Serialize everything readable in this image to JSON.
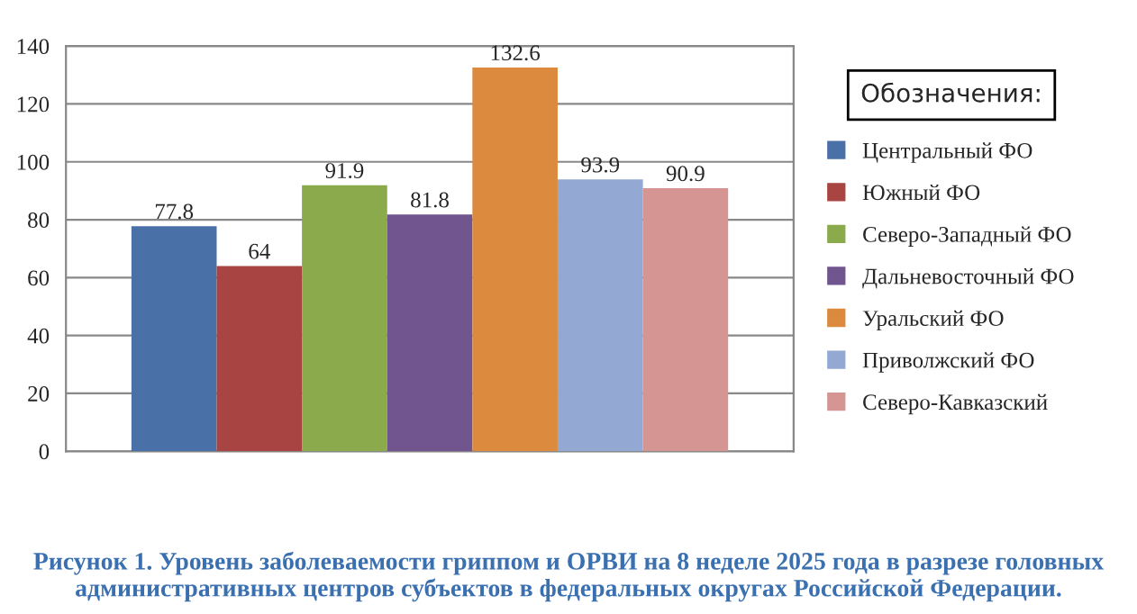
{
  "chart_data": {
    "type": "bar",
    "categories": [
      null
    ],
    "series": [
      {
        "name": "Центральный ФО",
        "color": "#4a70a8",
        "values": [
          77.8
        ]
      },
      {
        "name": "Южный ФО",
        "color": "#a84441",
        "values": [
          64
        ]
      },
      {
        "name": "Северо-Западный ФО",
        "color": "#8aaa4c",
        "values": [
          91.9
        ]
      },
      {
        "name": "Дальневосточный ФО",
        "color": "#70558f",
        "values": [
          81.8
        ]
      },
      {
        "name": "Уральский ФО",
        "color": "#db8a3e",
        "values": [
          132.6
        ]
      },
      {
        "name": "Приволжский ФО",
        "color": "#93a9d3",
        "values": [
          93.9
        ]
      },
      {
        "name": "Северо-Кавказский",
        "color": "#d49593",
        "values": [
          90.9
        ]
      }
    ],
    "ylim": [
      0,
      140
    ],
    "yticks": [
      0,
      20,
      40,
      60,
      80,
      100,
      120,
      140
    ],
    "grid": "y",
    "data_labels": true,
    "legend": "right",
    "legend_title": "Обозначения:",
    "annotations": [
      "Рисунок 1. Уровень заболеваемости гриппом и ОРВИ на 8 неделе 2025 года в разрезе головных административных центров субъектов в федеральных округах Российской Федерации."
    ]
  }
}
